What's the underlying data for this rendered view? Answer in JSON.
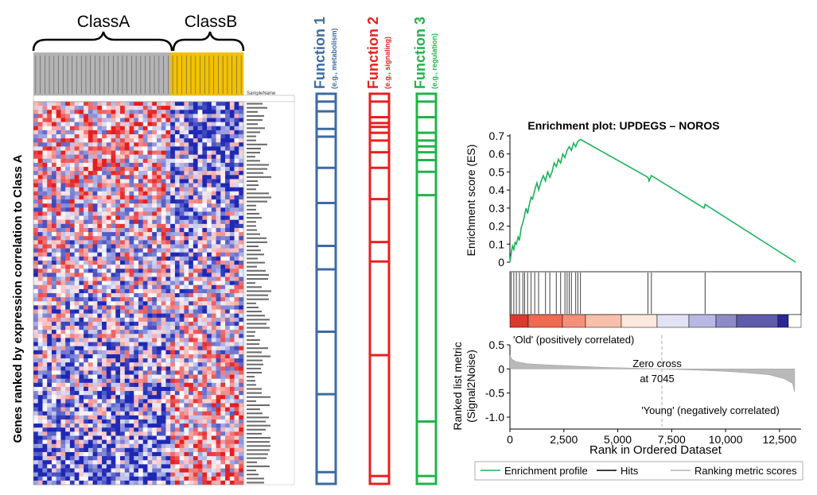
{
  "figure": {
    "class_a_label": "ClassA",
    "class_b_label": "ClassB",
    "sample_header": "SampleName",
    "y_axis_title": "Genes ranked by expression correlation to Class A"
  },
  "functions": [
    {
      "title": "Function 1",
      "subtitle": "(e.g., metabolism)",
      "color": "#3d6aa3",
      "rank_fraction_hits": [
        0.02,
        0.045,
        0.09,
        0.11,
        0.19,
        0.28,
        0.39,
        0.45,
        0.61,
        0.77,
        0.97
      ]
    },
    {
      "title": "Function 2",
      "subtitle": "(e.g., signaling)",
      "color": "#e82020",
      "rank_fraction_hits": [
        0.02,
        0.06,
        0.075,
        0.085,
        0.1,
        0.12,
        0.15,
        0.19,
        0.27,
        0.38,
        0.43,
        0.67,
        0.98
      ]
    },
    {
      "title": "Function 3",
      "subtitle": "(e.g., regulation)",
      "color": "#22b34a",
      "rank_fraction_hits": [
        0.02,
        0.06,
        0.1,
        0.12,
        0.135,
        0.15,
        0.17,
        0.2,
        0.26,
        0.84,
        0.98
      ]
    }
  ],
  "chart_data": [
    {
      "type": "heatmap",
      "groups": [
        {
          "name": "ClassA",
          "samples": 30,
          "color": "#b4b4b4"
        },
        {
          "name": "ClassB",
          "samples": 16,
          "color": "#f2c100"
        }
      ],
      "gene_rows": 94,
      "color_scale": [
        "#1e27b4",
        "#ffffff",
        "#e61e1e"
      ]
    },
    {
      "type": "line",
      "title": "Enrichment plot: UPDEGS – NOROS",
      "ylabel": "Enrichment score (ES)",
      "ylim": [
        0,
        0.7
      ],
      "yticks": [
        "0.7",
        "0.6",
        "0.5",
        "0.4",
        "0.3",
        "0.2",
        "0.1",
        "0"
      ],
      "line_color": "#19b45a",
      "points": [
        [
          0,
          0.0
        ],
        [
          60,
          0.05
        ],
        [
          120,
          0.09
        ],
        [
          180,
          0.07
        ],
        [
          240,
          0.11
        ],
        [
          300,
          0.1
        ],
        [
          380,
          0.14
        ],
        [
          440,
          0.12
        ],
        [
          520,
          0.19
        ],
        [
          600,
          0.22
        ],
        [
          680,
          0.26
        ],
        [
          750,
          0.3
        ],
        [
          820,
          0.27
        ],
        [
          900,
          0.32
        ],
        [
          980,
          0.36
        ],
        [
          1050,
          0.35
        ],
        [
          1150,
          0.4
        ],
        [
          1250,
          0.44
        ],
        [
          1330,
          0.4
        ],
        [
          1450,
          0.45
        ],
        [
          1550,
          0.48
        ],
        [
          1650,
          0.45
        ],
        [
          1750,
          0.5
        ],
        [
          1850,
          0.47
        ],
        [
          1950,
          0.5
        ],
        [
          2050,
          0.55
        ],
        [
          2150,
          0.53
        ],
        [
          2250,
          0.57
        ],
        [
          2350,
          0.55
        ],
        [
          2450,
          0.6
        ],
        [
          2550,
          0.58
        ],
        [
          2650,
          0.62
        ],
        [
          2750,
          0.64
        ],
        [
          2850,
          0.62
        ],
        [
          2950,
          0.66
        ],
        [
          3050,
          0.64
        ],
        [
          3150,
          0.67
        ],
        [
          3270,
          0.68
        ],
        [
          6400,
          0.47
        ],
        [
          6450,
          0.45
        ],
        [
          6560,
          0.48
        ],
        [
          9000,
          0.3
        ],
        [
          9050,
          0.32
        ],
        [
          13250,
          0.0
        ]
      ],
      "hits_x": [
        60,
        180,
        300,
        440,
        600,
        680,
        820,
        980,
        1150,
        1330,
        1650,
        1850,
        2150,
        2350,
        2550,
        2650,
        2750,
        2850,
        3050,
        3150,
        3270,
        6400,
        6560,
        9050
      ]
    },
    {
      "type": "area",
      "ylabel": "Ranked list metric\n(Signal2Noise)",
      "xlabel": "Rank in Ordered Dataset",
      "ylim": [
        -1.0,
        0.5
      ],
      "yticks": [
        "0.5",
        "0",
        "-0.5",
        "-1.0"
      ],
      "xticks": [
        "0",
        "2,500",
        "5,000",
        "7,500",
        "10,000",
        "12,500"
      ],
      "xlim": [
        0,
        13500
      ],
      "zero_cross_x": 7045,
      "annotations": {
        "positive": "'Old' (positively correlated)",
        "zero_cross_line1": "Zero cross",
        "zero_cross_line2": "at 7045",
        "negative": "'Young' (negatively correlated)"
      },
      "profile": [
        [
          0,
          0.28
        ],
        [
          100,
          0.2
        ],
        [
          300,
          0.15
        ],
        [
          800,
          0.11
        ],
        [
          1500,
          0.09
        ],
        [
          2500,
          0.07
        ],
        [
          3500,
          0.05
        ],
        [
          4500,
          0.03
        ],
        [
          5500,
          0.02
        ],
        [
          6500,
          0.005
        ],
        [
          7045,
          0.0
        ],
        [
          8000,
          -0.015
        ],
        [
          9000,
          -0.03
        ],
        [
          10000,
          -0.05
        ],
        [
          11000,
          -0.08
        ],
        [
          12000,
          -0.12
        ],
        [
          12700,
          -0.2
        ],
        [
          13100,
          -0.3
        ],
        [
          13200,
          -0.48
        ]
      ],
      "color_bar": [
        "#d93a2e",
        "#ee6a50",
        "#f4907a",
        "#f8c0ac",
        "#fce8dc",
        "#e2e2f4",
        "#b9b8e4",
        "#8e8ac8",
        "#5f5aaa",
        "#2b2896",
        "#ffffff"
      ],
      "legend": [
        "Enrichment profile",
        "Hits",
        "Ranking metric scores"
      ]
    }
  ]
}
